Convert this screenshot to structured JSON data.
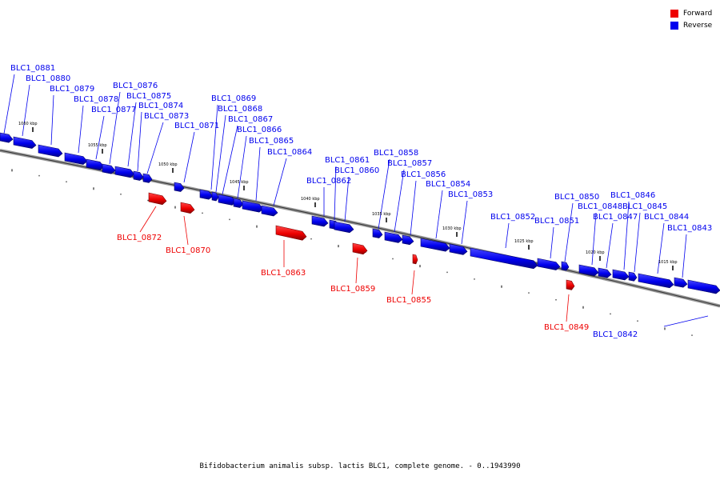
{
  "caption": "Bifidobacterium animalis subsp. lactis BLC1, complete genome. - 0..1943990",
  "legend": {
    "forward": {
      "label": "Forward",
      "color": "#ee0000"
    },
    "reverse": {
      "label": "Reverse",
      "color": "#0000ee"
    }
  },
  "kbp_marks": [
    "1060 kbp",
    "1055 kbp",
    "1050 kbp",
    "1045 kbp",
    "1040 kbp",
    "1035 kbp",
    "1030 kbp",
    "1025 kbp",
    "1020 kbp",
    "1015 kbp"
  ],
  "genes": [
    {
      "id": "BLC1_0881",
      "strand": "reverse"
    },
    {
      "id": "BLC1_0880",
      "strand": "reverse"
    },
    {
      "id": "BLC1_0879",
      "strand": "reverse"
    },
    {
      "id": "BLC1_0878",
      "strand": "reverse"
    },
    {
      "id": "BLC1_0877",
      "strand": "reverse"
    },
    {
      "id": "BLC1_0876",
      "strand": "reverse"
    },
    {
      "id": "BLC1_0875",
      "strand": "reverse"
    },
    {
      "id": "BLC1_0874",
      "strand": "reverse"
    },
    {
      "id": "BLC1_0873",
      "strand": "reverse"
    },
    {
      "id": "BLC1_0872",
      "strand": "forward"
    },
    {
      "id": "BLC1_0871",
      "strand": "reverse"
    },
    {
      "id": "BLC1_0870",
      "strand": "forward"
    },
    {
      "id": "BLC1_0869",
      "strand": "reverse"
    },
    {
      "id": "BLC1_0868",
      "strand": "reverse"
    },
    {
      "id": "BLC1_0867",
      "strand": "reverse"
    },
    {
      "id": "BLC1_0866",
      "strand": "reverse"
    },
    {
      "id": "BLC1_0865",
      "strand": "reverse"
    },
    {
      "id": "BLC1_0864",
      "strand": "reverse"
    },
    {
      "id": "BLC1_0863",
      "strand": "forward"
    },
    {
      "id": "BLC1_0862",
      "strand": "reverse"
    },
    {
      "id": "BLC1_0861",
      "strand": "reverse"
    },
    {
      "id": "BLC1_0860",
      "strand": "reverse"
    },
    {
      "id": "BLC1_0859",
      "strand": "forward"
    },
    {
      "id": "BLC1_0858",
      "strand": "reverse"
    },
    {
      "id": "BLC1_0857",
      "strand": "reverse"
    },
    {
      "id": "BLC1_0856",
      "strand": "reverse"
    },
    {
      "id": "BLC1_0855",
      "strand": "forward"
    },
    {
      "id": "BLC1_0854",
      "strand": "reverse"
    },
    {
      "id": "BLC1_0853",
      "strand": "reverse"
    },
    {
      "id": "BLC1_0852",
      "strand": "reverse"
    },
    {
      "id": "BLC1_0851",
      "strand": "reverse"
    },
    {
      "id": "BLC1_0850",
      "strand": "reverse"
    },
    {
      "id": "BLC1_0849",
      "strand": "forward"
    },
    {
      "id": "BLC1_0848",
      "strand": "reverse"
    },
    {
      "id": "BLC1_0847",
      "strand": "reverse"
    },
    {
      "id": "BLC1_0846",
      "strand": "reverse"
    },
    {
      "id": "BLC1_0845",
      "strand": "reverse"
    },
    {
      "id": "BLC1_0844",
      "strand": "reverse"
    },
    {
      "id": "BLC1_0843",
      "strand": "reverse"
    },
    {
      "id": "BLC1_0842",
      "strand": "reverse"
    }
  ]
}
